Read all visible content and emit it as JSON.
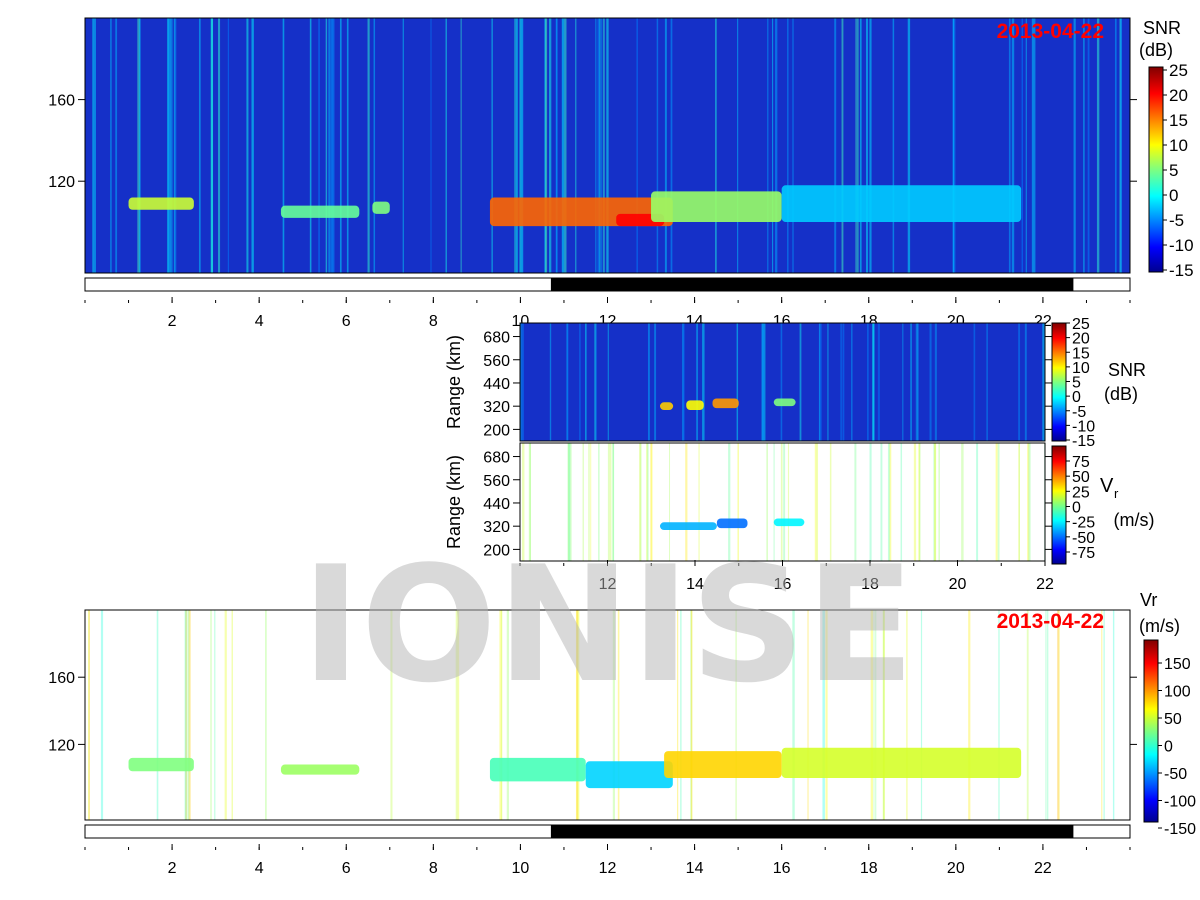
{
  "watermark": "IONISE",
  "colors": {
    "date": "#ff0000",
    "background_snr": "#1530c8",
    "daynight_bar": "#000000",
    "watermark": "#b4b4b4"
  },
  "chart_data": [
    {
      "id": "top-snr",
      "type": "heatmap",
      "date_label": "2013-04-22",
      "x_ticks": [
        "2",
        "4",
        "6",
        "8",
        "10",
        "12",
        "14",
        "16",
        "18",
        "20",
        "22"
      ],
      "y_ticks": [
        "120",
        "160"
      ],
      "xlim": [
        0,
        24
      ],
      "ylim": [
        75,
        200
      ],
      "colorbar": {
        "title_line1": "SNR",
        "title_line2": "(dB)",
        "ticks": [
          "25",
          "20",
          "15",
          "10",
          "5",
          "0",
          "-5",
          "-10",
          "-15"
        ],
        "range": [
          -15,
          25
        ]
      },
      "echo_regions": [
        {
          "x": [
            1.0,
            2.5
          ],
          "y": [
            106,
            112
          ],
          "value": 8
        },
        {
          "x": [
            4.5,
            6.3
          ],
          "y": [
            102,
            108
          ],
          "value": 4
        },
        {
          "x": [
            6.6,
            7.0
          ],
          "y": [
            104,
            110
          ],
          "value": 5
        },
        {
          "x": [
            9.3,
            13.5
          ],
          "y": [
            98,
            112
          ],
          "value": 16
        },
        {
          "x": [
            12.2,
            13.3
          ],
          "y": [
            98,
            104
          ],
          "value": 20
        },
        {
          "x": [
            13.0,
            16.0
          ],
          "y": [
            100,
            115
          ],
          "value": 6
        },
        {
          "x": [
            16.0,
            21.5
          ],
          "y": [
            100,
            118
          ],
          "value": -2
        }
      ],
      "daynight_bar": {
        "night_start": 10.7,
        "night_end": 22.7
      }
    },
    {
      "id": "mid-snr",
      "type": "heatmap",
      "y_label": "Range (km)",
      "y_ticks": [
        "200",
        "320",
        "440",
        "560",
        "680"
      ],
      "xlim": [
        10,
        22
      ],
      "ylim": [
        140,
        750
      ],
      "colorbar": {
        "title_line1": "SNR",
        "title_line2": "(dB)",
        "ticks": [
          "25",
          "20",
          "15",
          "10",
          "5",
          "0",
          "-5",
          "-10",
          "-15"
        ],
        "range": [
          -15,
          25
        ]
      },
      "echo_regions": [
        {
          "x": [
            13.2,
            13.5
          ],
          "y": [
            300,
            340
          ],
          "value": 12
        },
        {
          "x": [
            13.8,
            14.2
          ],
          "y": [
            300,
            350
          ],
          "value": 10
        },
        {
          "x": [
            14.4,
            15.0
          ],
          "y": [
            310,
            360
          ],
          "value": 14
        },
        {
          "x": [
            15.8,
            16.3
          ],
          "y": [
            320,
            360
          ],
          "value": 5
        }
      ]
    },
    {
      "id": "mid-vr",
      "type": "heatmap",
      "y_label": "Range (km)",
      "y_ticks": [
        "200",
        "320",
        "440",
        "560",
        "680"
      ],
      "x_ticks": [
        "12",
        "14",
        "16",
        "18",
        "20",
        "22"
      ],
      "xlim": [
        10,
        22
      ],
      "ylim": [
        140,
        750
      ],
      "colorbar": {
        "title_line1": "V",
        "title_sub": "r",
        "title_line2": "(m/s)",
        "ticks": [
          "75",
          "50",
          "25",
          "0",
          "-25",
          "-50",
          "-75"
        ],
        "range": [
          -75,
          75
        ]
      },
      "echo_regions": [
        {
          "x": [
            13.2,
            14.5
          ],
          "y": [
            300,
            340
          ],
          "value": -30
        },
        {
          "x": [
            14.5,
            15.2
          ],
          "y": [
            310,
            360
          ],
          "value": -40
        },
        {
          "x": [
            15.8,
            16.5
          ],
          "y": [
            320,
            360
          ],
          "value": -20
        }
      ]
    },
    {
      "id": "bottom-vr",
      "type": "heatmap",
      "date_label": "2013-04-22",
      "x_ticks": [
        "2",
        "4",
        "6",
        "8",
        "10",
        "12",
        "14",
        "16",
        "18",
        "20",
        "22"
      ],
      "y_ticks": [
        "120",
        "160"
      ],
      "xlim": [
        0,
        24
      ],
      "ylim": [
        75,
        200
      ],
      "colorbar": {
        "title_line1": "Vr",
        "title_line2": "(m/s)",
        "ticks": [
          "150",
          "100",
          "50",
          "0",
          "-50",
          "-100",
          "-150"
        ],
        "range": [
          -180,
          180
        ]
      },
      "echo_regions": [
        {
          "x": [
            1.0,
            2.5
          ],
          "y": [
            104,
            112
          ],
          "value": 0
        },
        {
          "x": [
            4.5,
            6.3
          ],
          "y": [
            102,
            108
          ],
          "value": 10
        },
        {
          "x": [
            9.3,
            11.5
          ],
          "y": [
            98,
            112
          ],
          "value": -20
        },
        {
          "x": [
            11.5,
            13.5
          ],
          "y": [
            94,
            110
          ],
          "value": -60
        },
        {
          "x": [
            13.3,
            16.0
          ],
          "y": [
            100,
            116
          ],
          "value": 60
        },
        {
          "x": [
            16.0,
            21.5
          ],
          "y": [
            100,
            118
          ],
          "value": 30
        }
      ],
      "daynight_bar": {
        "night_start": 10.7,
        "night_end": 22.7
      }
    }
  ]
}
